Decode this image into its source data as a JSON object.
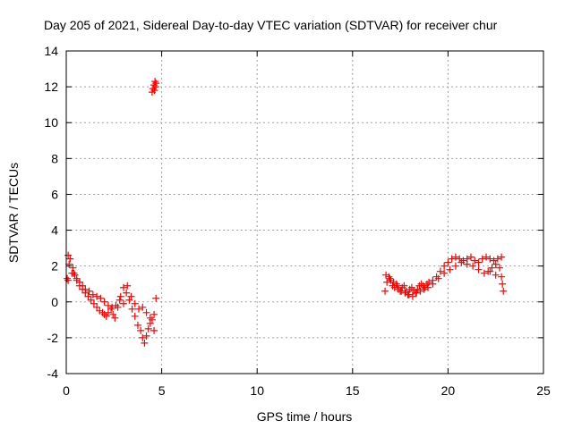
{
  "chart_data": {
    "type": "scatter",
    "title": "Day 205 of 2021, Sidereal Day-to-day VTEC variation (SDTVAR) for receiver chur",
    "xlabel": "GPS time / hours",
    "ylabel": "SDTVAR / TECUs",
    "xlim": [
      0,
      25
    ],
    "ylim": [
      -4,
      14
    ],
    "xticks": [
      0,
      5,
      10,
      15,
      20,
      25
    ],
    "yticks": [
      -4,
      -2,
      0,
      2,
      4,
      6,
      8,
      10,
      12,
      14
    ],
    "xtick_labels": [
      "0",
      "5",
      "10",
      "15",
      "20",
      "25"
    ],
    "ytick_labels": [
      "-4",
      "-2",
      "0",
      "2",
      "4",
      "6",
      "8",
      "10",
      "12",
      "14"
    ],
    "grid": true,
    "marker": "plus",
    "color": "#ff0000",
    "series": [
      {
        "name": "SDTVAR",
        "x": [
          0.05,
          0.1,
          0.15,
          0.1,
          0.2,
          0.3,
          0.35,
          0.45,
          0.55,
          0.7,
          0.85,
          1.0,
          1.15,
          1.3,
          1.45,
          1.6,
          1.75,
          1.9,
          2.0,
          2.1,
          2.2,
          2.35,
          2.45,
          2.55,
          2.7,
          2.85,
          3.0,
          3.15,
          3.3,
          3.45,
          3.6,
          3.75,
          3.9,
          4.0,
          4.1,
          4.2,
          4.3,
          4.4,
          4.5,
          4.6,
          4.7,
          0.4,
          0.55,
          0.7,
          0.85,
          1.0,
          1.2,
          1.4,
          1.6,
          1.8,
          2.0,
          2.2,
          2.4,
          2.6,
          2.8,
          3.0,
          3.2,
          3.4,
          3.6,
          3.8,
          4.0,
          4.2,
          4.4,
          4.6,
          4.5,
          4.55,
          4.6,
          4.65,
          4.7,
          4.62,
          4.68,
          16.7,
          16.8,
          16.9,
          17.0,
          17.1,
          17.2,
          17.3,
          17.4,
          17.5,
          17.6,
          17.7,
          17.8,
          17.9,
          18.0,
          18.1,
          18.2,
          18.3,
          18.4,
          18.5,
          18.6,
          18.7,
          18.8,
          18.9,
          19.0,
          19.2,
          19.4,
          19.6,
          19.8,
          20.0,
          20.2,
          20.4,
          20.6,
          20.8,
          21.0,
          21.2,
          21.4,
          21.6,
          21.8,
          22.0,
          22.2,
          22.4,
          22.6,
          22.8,
          16.75,
          16.95,
          17.15,
          17.35,
          17.55,
          17.75,
          17.95,
          18.15,
          18.35,
          18.55,
          18.75,
          18.95,
          19.2,
          19.5,
          19.8,
          20.1,
          20.4,
          20.7,
          21.0,
          21.3,
          21.6,
          21.9,
          22.2,
          22.5,
          22.8,
          22.9,
          22.85,
          22.7,
          22.5,
          22.3,
          22.1
        ],
        "y": [
          1.3,
          2.6,
          2.1,
          1.2,
          2.4,
          1.6,
          1.9,
          1.5,
          1.2,
          0.9,
          0.7,
          0.5,
          0.3,
          0.1,
          -0.1,
          -0.3,
          -0.5,
          -0.6,
          -0.7,
          -0.8,
          -0.6,
          -0.4,
          -0.7,
          -0.9,
          -0.3,
          0.3,
          0.8,
          0.5,
          0.1,
          -0.4,
          -0.8,
          -1.3,
          -1.6,
          -2.0,
          -2.3,
          -1.9,
          -1.5,
          -1.2,
          -1.0,
          -0.7,
          0.2,
          1.6,
          1.3,
          1.1,
          0.9,
          0.7,
          0.6,
          0.4,
          0.3,
          0.2,
          0.0,
          -0.2,
          -0.3,
          -0.2,
          0.1,
          -0.1,
          0.9,
          0.3,
          -0.1,
          -0.4,
          -0.3,
          -0.6,
          -0.9,
          -1.6,
          11.7,
          11.9,
          12.1,
          12.3,
          12.2,
          11.8,
          12.0,
          0.6,
          1.1,
          1.4,
          1.2,
          0.9,
          0.8,
          1.0,
          0.7,
          0.6,
          0.8,
          0.9,
          0.6,
          0.4,
          0.7,
          0.8,
          0.6,
          0.5,
          0.7,
          0.9,
          1.0,
          0.9,
          0.8,
          1.0,
          1.1,
          1.2,
          1.4,
          1.7,
          2.0,
          2.2,
          2.4,
          2.5,
          2.4,
          2.3,
          2.4,
          2.5,
          2.3,
          2.2,
          2.4,
          2.5,
          2.4,
          2.3,
          2.4,
          2.5,
          1.5,
          1.3,
          1.1,
          0.9,
          0.6,
          0.5,
          0.4,
          0.3,
          0.5,
          0.6,
          0.7,
          0.8,
          1.0,
          1.3,
          1.6,
          1.8,
          2.0,
          2.2,
          2.1,
          2.0,
          1.8,
          1.6,
          1.7,
          1.5,
          1.4,
          0.6,
          1.0,
          1.9,
          2.1,
          1.9,
          1.7
        ]
      }
    ]
  }
}
